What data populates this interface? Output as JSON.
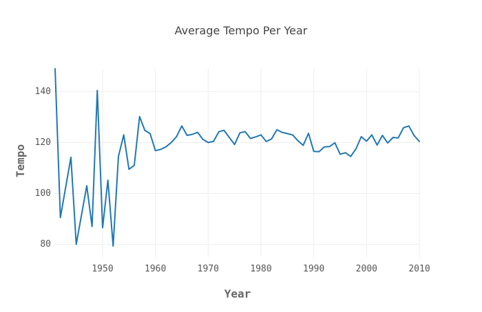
{
  "chart_data": {
    "type": "line",
    "title": "Average Tempo Per Year",
    "xlabel": "Year",
    "ylabel": "Tempo",
    "xlim": [
      1941,
      2010
    ],
    "ylim": [
      75,
      149
    ],
    "xticks": [
      1950,
      1960,
      1970,
      1980,
      1990,
      2000,
      2010
    ],
    "yticks": [
      80,
      100,
      120,
      140
    ],
    "grid": true,
    "line_color": "#1f77b4",
    "series": [
      {
        "x": [
          1941,
          1942,
          1944,
          1945,
          1947,
          1948,
          1949,
          1950,
          1951,
          1952,
          1953,
          1954,
          1955,
          1956,
          1957,
          1958,
          1959,
          1960,
          1961,
          1962,
          1963,
          1964,
          1965,
          1966,
          1967,
          1968,
          1969,
          1970,
          1971,
          1972,
          1973,
          1974,
          1975,
          1976,
          1977,
          1978,
          1979,
          1980,
          1981,
          1982,
          1983,
          1984,
          1985,
          1986,
          1987,
          1988,
          1989,
          1990,
          1991,
          1992,
          1993,
          1994,
          1995,
          1996,
          1997,
          1998,
          1999,
          2000,
          2001,
          2002,
          2003,
          2004,
          2005,
          2006,
          2007,
          2008,
          2009,
          2010
        ],
        "y": [
          149,
          90.5,
          114.2,
          80,
          103,
          87,
          140.5,
          86.5,
          105.2,
          79.3,
          114.5,
          123,
          109.5,
          111,
          130.2,
          124.8,
          123.5,
          116.8,
          117.3,
          118.3,
          120,
          122.3,
          126.5,
          122.8,
          123.2,
          124,
          121.2,
          120,
          120.4,
          124.2,
          124.8,
          122,
          119.2,
          123.8,
          124.3,
          121.6,
          122.2,
          123,
          120.4,
          121.4,
          125,
          124,
          123.5,
          123,
          120.7,
          118.9,
          123.6,
          116.5,
          116.4,
          118.3,
          118.4,
          119.9,
          115.4,
          116,
          114.5,
          117.5,
          122.3,
          120.5,
          123,
          119,
          122.8,
          119.8,
          122,
          121.8,
          125.8,
          126.5,
          122.8,
          120.4
        ]
      }
    ]
  }
}
